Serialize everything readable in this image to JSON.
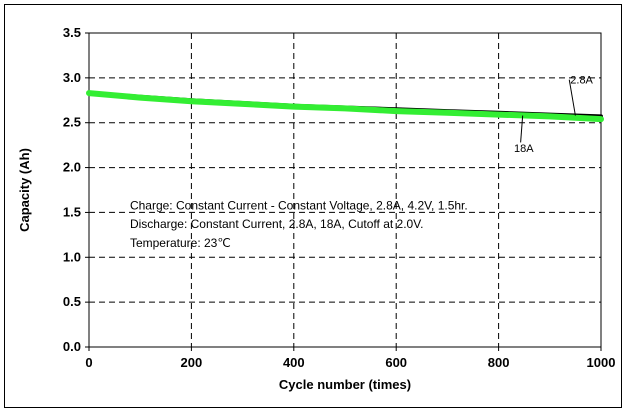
{
  "chart_data": {
    "type": "line",
    "title": "",
    "xlabel": "Cycle number (times)",
    "ylabel": "Capacity (Ah)",
    "xlim": [
      0,
      1000
    ],
    "ylim": [
      0.0,
      3.5
    ],
    "x_ticks": [
      0,
      200,
      400,
      600,
      800,
      1000
    ],
    "x_tick_labels": [
      "0",
      "200",
      "400",
      "600",
      "800",
      "1000"
    ],
    "y_ticks": [
      0.0,
      0.5,
      1.0,
      1.5,
      2.0,
      2.5,
      3.0,
      3.5
    ],
    "y_tick_labels": [
      "0.0",
      "0.5",
      "1.0",
      "1.5",
      "2.0",
      "2.5",
      "3.0",
      "3.5"
    ],
    "grid": "dashed",
    "legend": "none",
    "series": [
      {
        "name": "2.8A",
        "color": "#000000",
        "x": [
          0,
          100,
          200,
          300,
          400,
          500,
          600,
          700,
          800,
          900,
          1000
        ],
        "values": [
          2.83,
          2.79,
          2.75,
          2.72,
          2.69,
          2.67,
          2.65,
          2.63,
          2.61,
          2.59,
          2.57
        ]
      },
      {
        "name": "18A",
        "color": "#33ee33",
        "x": [
          0,
          100,
          200,
          300,
          400,
          500,
          600,
          700,
          800,
          900,
          1000
        ],
        "values": [
          2.83,
          2.78,
          2.74,
          2.71,
          2.68,
          2.66,
          2.63,
          2.61,
          2.59,
          2.57,
          2.54
        ]
      }
    ],
    "annotations": [
      "Charge: Constant Current - Constant Voltage, 2.8A, 4.2V, 1.5hr.",
      "Discharge: Constant Current, 2.8A, 18A, Cutoff at 2.0V.",
      "Temperature: 23℃"
    ]
  }
}
